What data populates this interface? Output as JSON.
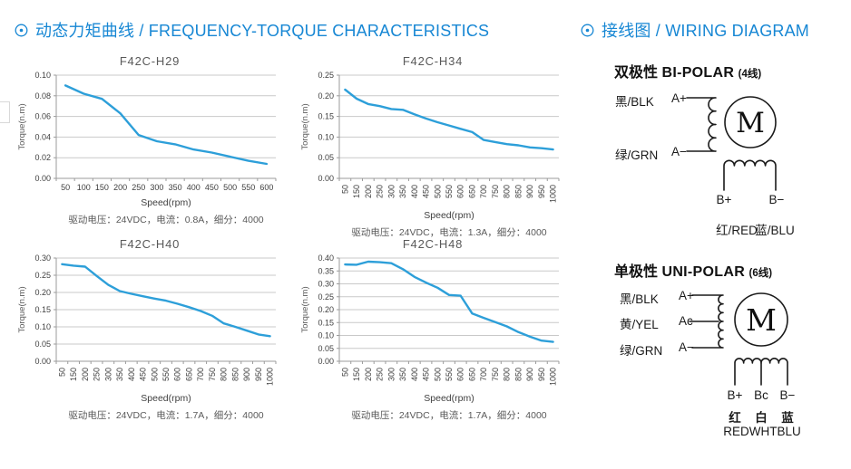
{
  "header_left": {
    "bullet_icon": "circled-dot",
    "title": "动态力矩曲线 / FREQUENCY-TORQUE CHARACTERISTICS"
  },
  "header_right": {
    "bullet_icon": "circled-dot",
    "title": "接线图 / WIRING DIAGRAM"
  },
  "colors": {
    "accent_blue": "#1787d4",
    "line_blue": "#2d9fd9",
    "grid": "#c9c9c9",
    "axis": "#9b9b9b",
    "tick_text": "#404040",
    "muted_text": "#595959",
    "wiring_black": "#1a1a1a"
  },
  "chart_data": [
    {
      "type": "line",
      "title": "F42C-H29",
      "xlabel": "Speed(rpm)",
      "ylabel": "Torque(n.m)",
      "caption": "驱动电压：24VDC，电流：0.8A，细分：4000",
      "categories": [
        "50",
        "100",
        "150",
        "200",
        "250",
        "300",
        "350",
        "400",
        "450",
        "500",
        "550",
        "600"
      ],
      "values": [
        0.09,
        0.082,
        0.077,
        0.063,
        0.042,
        0.036,
        0.033,
        0.028,
        0.025,
        0.021,
        0.017,
        0.014
      ],
      "ylim": [
        0,
        0.1
      ],
      "ystep": 0.02,
      "y_decimals": 2,
      "grid": true,
      "legend": "none",
      "x_label_rotated": false
    },
    {
      "type": "line",
      "title": "F42C-H34",
      "xlabel": "Speed(rpm)",
      "ylabel": "Torque(n.m)",
      "caption": "驱动电压：24VDC，电流：1.3A，细分：4000",
      "categories": [
        "50",
        "150",
        "200",
        "250",
        "300",
        "350",
        "400",
        "450",
        "500",
        "550",
        "600",
        "650",
        "700",
        "750",
        "800",
        "850",
        "900",
        "950",
        "1000"
      ],
      "values": [
        0.215,
        0.193,
        0.18,
        0.175,
        0.168,
        0.166,
        0.155,
        0.145,
        0.136,
        0.128,
        0.12,
        0.112,
        0.093,
        0.088,
        0.083,
        0.08,
        0.075,
        0.073,
        0.07
      ],
      "ylim": [
        0,
        0.25
      ],
      "ystep": 0.05,
      "y_decimals": 2,
      "grid": true,
      "legend": "none",
      "x_label_rotated": true
    },
    {
      "type": "line",
      "title": "F42C-H40",
      "xlabel": "Speed(rpm)",
      "ylabel": "Torque(n.m)",
      "caption": "驱动电压：24VDC，电流：1.7A，细分：4000",
      "categories": [
        "50",
        "150",
        "200",
        "250",
        "300",
        "350",
        "400",
        "450",
        "500",
        "550",
        "600",
        "650",
        "700",
        "750",
        "800",
        "850",
        "900",
        "950",
        "1000"
      ],
      "values": [
        0.282,
        0.278,
        0.275,
        0.248,
        0.222,
        0.204,
        0.196,
        0.189,
        0.182,
        0.176,
        0.167,
        0.157,
        0.146,
        0.132,
        0.11,
        0.1,
        0.089,
        0.078,
        0.073
      ],
      "ylim": [
        0,
        0.3
      ],
      "ystep": 0.05,
      "y_decimals": 2,
      "grid": true,
      "legend": "none",
      "x_label_rotated": true
    },
    {
      "type": "line",
      "title": "F42C-H48",
      "xlabel": "Speed(rpm)",
      "ylabel": "Torque(n.m)",
      "caption": "驱动电压：24VDC，电流：1.7A，细分：4000",
      "categories": [
        "50",
        "150",
        "200",
        "250",
        "300",
        "350",
        "400",
        "450",
        "500",
        "550",
        "600",
        "650",
        "700",
        "750",
        "800",
        "850",
        "900",
        "950",
        "1000"
      ],
      "values": [
        0.375,
        0.374,
        0.386,
        0.384,
        0.38,
        0.357,
        0.327,
        0.305,
        0.285,
        0.257,
        0.254,
        0.185,
        0.168,
        0.152,
        0.135,
        0.113,
        0.095,
        0.08,
        0.075
      ],
      "ylim": [
        0,
        0.4
      ],
      "ystep": 0.05,
      "y_decimals": 2,
      "grid": true,
      "legend": "none",
      "x_label_rotated": true
    }
  ],
  "wiring": {
    "bipolar": {
      "heading_cn": "双极性",
      "heading_en": "BI-POLAR",
      "heading_note": "(4线)",
      "motor_label": "M",
      "leads_left": [
        {
          "wire": "黑/BLK",
          "terminal": "A+"
        },
        {
          "wire": "绿/GRN",
          "terminal": "A−"
        }
      ],
      "leads_bottom": [
        {
          "terminal": "B+",
          "wire": "红/RED"
        },
        {
          "terminal": "B−",
          "wire": "蓝/BLU"
        }
      ]
    },
    "unipolar": {
      "heading_cn": "单极性",
      "heading_en": "UNI-POLAR",
      "heading_note": "(6线)",
      "motor_label": "M",
      "leads_left": [
        {
          "wire": "黑/BLK",
          "terminal": "A+"
        },
        {
          "wire": "黄/YEL",
          "terminal": "Ac"
        },
        {
          "wire": "绿/GRN",
          "terminal": "A−"
        }
      ],
      "leads_bottom": [
        {
          "terminal": "B+",
          "wire": "红"
        },
        {
          "terminal": "Bc",
          "wire": "白"
        },
        {
          "terminal": "B−",
          "wire": "蓝"
        }
      ],
      "bottom_caption": "REDWHTBLU"
    }
  }
}
